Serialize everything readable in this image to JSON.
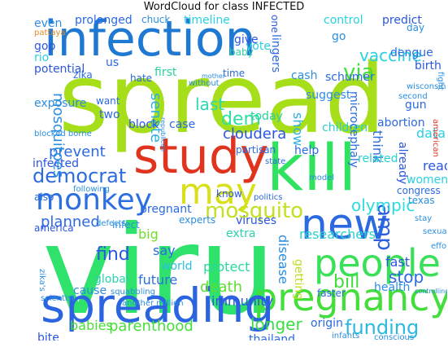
{
  "title": "WordCloud for class INFECTED",
  "words": [
    {
      "text": "infection",
      "color": "#1f78d1"
    },
    {
      "text": "spread",
      "color": "#a6de1a"
    },
    {
      "text": "viru",
      "color": "#2fe26c"
    },
    {
      "text": "study",
      "color": "#e1341e"
    },
    {
      "text": "kill",
      "color": "#2fe25f"
    },
    {
      "text": "new",
      "color": "#2b6ae0"
    },
    {
      "text": "people",
      "color": "#3ae05a"
    },
    {
      "text": "pregnancy",
      "color": "#43de3b"
    },
    {
      "text": "spreading",
      "color": "#2b64e0"
    },
    {
      "text": "monkey",
      "color": "#2c6fe0"
    },
    {
      "text": "may",
      "color": "#d8e01a"
    },
    {
      "text": "mosquito",
      "color": "#c4e021"
    },
    {
      "text": "democrat",
      "color": "#2b6ae0"
    },
    {
      "text": "funding",
      "color": "#2bb9e0"
    },
    {
      "text": "amp",
      "color": "#2c5fe0"
    },
    {
      "text": "olympic",
      "color": "#2bdce0"
    },
    {
      "text": "parenthood",
      "color": "#45de3a"
    },
    {
      "text": "babies",
      "color": "#4ade36"
    },
    {
      "text": "longer",
      "color": "#39de44"
    },
    {
      "text": "bill",
      "color": "#40de3c"
    },
    {
      "text": "stop",
      "color": "#2b6ae0"
    },
    {
      "text": "via",
      "color": "#44de3a"
    },
    {
      "text": "vaccine",
      "color": "#2bd0e0"
    },
    {
      "text": "prevent",
      "color": "#2b6ae0"
    },
    {
      "text": "cloudera",
      "color": "#2b56e0"
    },
    {
      "text": "planned",
      "color": "#2b6ae0"
    },
    {
      "text": "find",
      "color": "#2b56e0"
    },
    {
      "text": "mosquitoes",
      "color": "#2b8ee0"
    },
    {
      "text": "last",
      "color": "#2bd8b0"
    },
    {
      "text": "dem",
      "color": "#2be0a0"
    },
    {
      "text": "senate",
      "color": "#2bb0e0"
    },
    {
      "text": "researchers",
      "color": "#2bd0d0"
    },
    {
      "text": "pregnant",
      "color": "#2b6ae0"
    },
    {
      "text": "death",
      "color": "#5ede2e"
    },
    {
      "text": "protect",
      "color": "#2bd8a0"
    },
    {
      "text": "big",
      "color": "#70de2a"
    },
    {
      "text": "say",
      "color": "#2b6ae0"
    },
    {
      "text": "world",
      "color": "#2bc0e0"
    },
    {
      "text": "future",
      "color": "#2b70e0"
    },
    {
      "text": "global",
      "color": "#2bd0b0"
    },
    {
      "text": "immunity",
      "color": "#2b56e0"
    },
    {
      "text": "fast",
      "color": "#2b56e0"
    },
    {
      "text": "show",
      "color": "#2bb0e0"
    },
    {
      "text": "think",
      "color": "#2b6ae0"
    },
    {
      "text": "children",
      "color": "#2bd0d0"
    },
    {
      "text": "abortion",
      "color": "#2b6ae0"
    },
    {
      "text": "data",
      "color": "#2bd0e0"
    },
    {
      "text": "read",
      "color": "#2b56e0"
    },
    {
      "text": "women",
      "color": "#2bd0e0"
    },
    {
      "text": "infected",
      "color": "#2b56e0"
    },
    {
      "text": "gop",
      "color": "#2b56e0"
    },
    {
      "text": "rio",
      "color": "#2bd0e0"
    },
    {
      "text": "exposure",
      "color": "#2b8ee0"
    },
    {
      "text": "potential",
      "color": "#2b56e0"
    },
    {
      "text": "even",
      "color": "#2b8ee0"
    },
    {
      "text": "prolonged",
      "color": "#2b6ae0"
    },
    {
      "text": "timeline",
      "color": "#2bd0e0"
    },
    {
      "text": "control",
      "color": "#2bd0e0"
    },
    {
      "text": "predict",
      "color": "#2b56e0"
    },
    {
      "text": "give",
      "color": "#2b56e0"
    },
    {
      "text": "vote",
      "color": "#2bd0e0"
    },
    {
      "text": "baby",
      "color": "#2bd0a0"
    },
    {
      "text": "lingers",
      "color": "#2b6ae0"
    },
    {
      "text": "go",
      "color": "#2b8ee0"
    },
    {
      "text": "dengue",
      "color": "#2b6ae0"
    },
    {
      "text": "birth",
      "color": "#2b56e0"
    },
    {
      "text": "us",
      "color": "#2b6ae0"
    },
    {
      "text": "first",
      "color": "#2bd0a0"
    },
    {
      "text": "hate",
      "color": "#2b6ae0"
    },
    {
      "text": "time",
      "color": "#2b6ae0"
    },
    {
      "text": "cash",
      "color": "#2b8ee0"
    },
    {
      "text": "schumer",
      "color": "#2b6ae0"
    },
    {
      "text": "suggest",
      "color": "#2b8ee0"
    },
    {
      "text": "want",
      "color": "#2b6ae0"
    },
    {
      "text": "two",
      "color": "#2b6ae0"
    },
    {
      "text": "today",
      "color": "#2bd0a0"
    },
    {
      "text": "case",
      "color": "#2b6ae0"
    },
    {
      "text": "block",
      "color": "#2b56e0"
    },
    {
      "text": "partisan",
      "color": "#2b6ae0"
    },
    {
      "text": "help",
      "color": "#2b6ae0"
    },
    {
      "text": "microcephaly",
      "color": "#2b6ae0"
    },
    {
      "text": "related",
      "color": "#2bd0d0"
    },
    {
      "text": "gun",
      "color": "#2b6ae0"
    },
    {
      "text": "already",
      "color": "#2b56e0"
    },
    {
      "text": "congress",
      "color": "#2b6ae0"
    },
    {
      "text": "texas",
      "color": "#2b8ee0"
    },
    {
      "text": "know",
      "color": "#2b56e0"
    },
    {
      "text": "experts",
      "color": "#2b8ee0"
    },
    {
      "text": "viruses",
      "color": "#2b56e0"
    },
    {
      "text": "extra",
      "color": "#2bd0b0"
    },
    {
      "text": "disease",
      "color": "#2b8ee0"
    },
    {
      "text": "getting",
      "color": "#c0de20"
    },
    {
      "text": "health",
      "color": "#2b8ee0"
    },
    {
      "text": "faster",
      "color": "#2b6ae0"
    },
    {
      "text": "origin",
      "color": "#2b6ae0"
    },
    {
      "text": "thailand",
      "color": "#2b6ae0"
    },
    {
      "text": "cause",
      "color": "#2b8ee0"
    },
    {
      "text": "defects",
      "color": "#2b8ee0"
    },
    {
      "text": "america",
      "color": "#2b56e0"
    },
    {
      "text": "infect",
      "color": "#2b8ee0"
    },
    {
      "text": "bite",
      "color": "#2b56e0"
    },
    {
      "text": "zika's",
      "color": "#2b8ee0"
    },
    {
      "text": "also",
      "color": "#2b6ae0"
    },
    {
      "text": "politics",
      "color": "#2b6ae0"
    },
    {
      "text": "model",
      "color": "#2b8ee0"
    },
    {
      "text": "state",
      "color": "#2b6ae0"
    },
    {
      "text": "zika",
      "color": "#2b6ae0"
    },
    {
      "text": "republican",
      "color": "#2b8ee0"
    },
    {
      "text": "chuck",
      "color": "#2b8ee0"
    },
    {
      "text": "one",
      "color": "#2b56e0"
    },
    {
      "text": "without",
      "color": "#2b8ee0"
    },
    {
      "text": "mother",
      "color": "#2b8ee0"
    },
    {
      "text": "infants",
      "color": "#2b8ee0"
    },
    {
      "text": "squabbling",
      "color": "#2b8ee0"
    },
    {
      "text": "another million",
      "color": "#2b8ee0"
    },
    {
      "text": "controlling",
      "color": "#2b8ee0"
    },
    {
      "text": "scientist",
      "color": "#2b8ee0"
    },
    {
      "text": "american",
      "color": "#e03a2b"
    },
    {
      "text": "fight",
      "color": "#2b8ee0"
    },
    {
      "text": "day",
      "color": "#2b8ee0"
    },
    {
      "text": "sexual",
      "color": "#2b8ee0"
    },
    {
      "text": "effort",
      "color": "#2b8ee0"
    },
    {
      "text": "stay",
      "color": "#2b8ee0"
    },
    {
      "text": "pattaya",
      "color": "#e08a2b"
    },
    {
      "text": "wisconsin",
      "color": "#2b8ee0"
    },
    {
      "text": "blocked borne",
      "color": "#2b8ee0"
    },
    {
      "text": "second",
      "color": "#2b8ee0"
    },
    {
      "text": "conscious",
      "color": "#2b8ee0"
    },
    {
      "text": "following",
      "color": "#2b8ee0"
    }
  ]
}
